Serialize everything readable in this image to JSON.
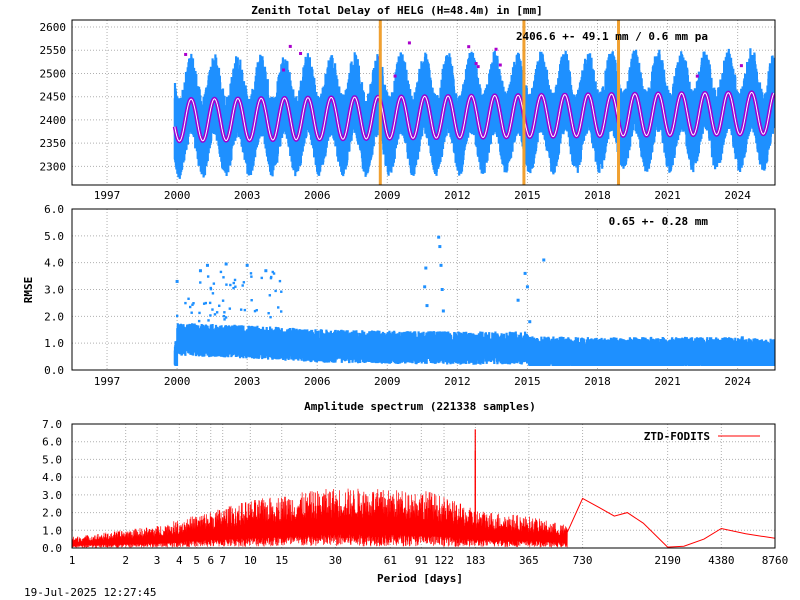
{
  "timestamp": "19-Jul-2025 12:27:45",
  "colors": {
    "ztd": "#1e90ff",
    "model": "#9b00d3",
    "model_center": "#ffffff",
    "breaks": "#f0a030",
    "spectrum": "#ff0000",
    "outliers": "#aa00cc"
  },
  "chart_data": [
    {
      "id": "ztd",
      "type": "scatter",
      "title": "Zenith Total Delay of HELG (H=48.4m) in [mm]",
      "annotation": "2406.6 +-  49.1 mm /  0.6 mm pa",
      "xlim": [
        1995.5,
        2025.6
      ],
      "ylim": [
        2260,
        2615
      ],
      "xticks": [
        1997,
        2000,
        2003,
        2006,
        2009,
        2012,
        2015,
        2018,
        2021,
        2024
      ],
      "xtick_labels": [
        "1997",
        "2000",
        "2003",
        "2006",
        "2009",
        "2012",
        "2015",
        "2018",
        "2021",
        "2024"
      ],
      "yticks": [
        2300,
        2350,
        2400,
        2450,
        2500,
        2550,
        2600
      ],
      "ytick_labels": [
        "2300",
        "2350",
        "2400",
        "2450",
        "2500",
        "2550",
        "2600"
      ],
      "data_start": 1999.9,
      "data_end": 2025.55,
      "mean": 2406.6,
      "seasonal_amplitude": 45,
      "trend_per_year": 0.6,
      "scatter_spread": 75,
      "breaks": [
        2008.7,
        2014.85,
        2018.9
      ]
    },
    {
      "id": "rmse",
      "type": "scatter",
      "ylabel": "RMSE",
      "annotation": "0.65 +-  0.28 mm",
      "xlim": [
        1995.5,
        2025.6
      ],
      "ylim": [
        0,
        6
      ],
      "xticks": [
        1997,
        2000,
        2003,
        2006,
        2009,
        2012,
        2015,
        2018,
        2021,
        2024
      ],
      "xtick_labels": [
        "1997",
        "2000",
        "2003",
        "2006",
        "2009",
        "2012",
        "2015",
        "2018",
        "2021",
        "2024"
      ],
      "yticks": [
        0,
        1,
        2,
        3,
        4,
        5,
        6
      ],
      "ytick_labels": [
        "0.0",
        "1.0",
        "2.0",
        "3.0",
        "4.0",
        "5.0",
        "6.0"
      ],
      "mean_series": [
        {
          "x": 2000,
          "y": 1.05
        },
        {
          "x": 2003,
          "y": 0.95
        },
        {
          "x": 2006,
          "y": 0.8
        },
        {
          "x": 2009,
          "y": 0.75
        },
        {
          "x": 2012,
          "y": 0.72
        },
        {
          "x": 2014.9,
          "y": 0.72
        },
        {
          "x": 2015.2,
          "y": 0.55
        },
        {
          "x": 2018,
          "y": 0.5
        },
        {
          "x": 2021,
          "y": 0.52
        },
        {
          "x": 2024,
          "y": 0.5
        },
        {
          "x": 2025.5,
          "y": 0.45
        }
      ],
      "spikes": [
        {
          "x": 2010.6,
          "y": 3.1
        },
        {
          "x": 2010.65,
          "y": 3.8
        },
        {
          "x": 2010.7,
          "y": 2.4
        },
        {
          "x": 2011.2,
          "y": 4.95
        },
        {
          "x": 2011.25,
          "y": 4.6
        },
        {
          "x": 2011.3,
          "y": 3.9
        },
        {
          "x": 2011.35,
          "y": 3.0
        },
        {
          "x": 2011.4,
          "y": 2.2
        },
        {
          "x": 2014.6,
          "y": 2.6
        },
        {
          "x": 2014.9,
          "y": 3.6
        },
        {
          "x": 2015.0,
          "y": 3.1
        },
        {
          "x": 2015.1,
          "y": 1.8
        },
        {
          "x": 2001.3,
          "y": 3.9
        },
        {
          "x": 2001.0,
          "y": 3.7
        },
        {
          "x": 2002.1,
          "y": 3.95
        },
        {
          "x": 2003.0,
          "y": 3.9
        },
        {
          "x": 2003.8,
          "y": 3.7
        },
        {
          "x": 2000.0,
          "y": 3.3
        },
        {
          "x": 2015.7,
          "y": 4.1
        },
        {
          "x": 2024.2,
          "y": 1.2
        }
      ]
    },
    {
      "id": "spectrum",
      "type": "line",
      "title": "Amplitude spectrum (221338 samples)",
      "xlabel": "Period [days]",
      "legend": "ZTD-FODITS",
      "legend_position": "top-right",
      "xscale": "log",
      "xlim": [
        1,
        8760
      ],
      "ylim": [
        0,
        7
      ],
      "xticks": [
        1,
        2,
        3,
        4,
        5,
        6,
        7,
        10,
        15,
        30,
        61,
        91,
        122,
        183,
        365,
        730,
        2190,
        4380,
        8760
      ],
      "xtick_labels": [
        "1",
        "2",
        "3",
        "4",
        "5",
        "6",
        "7",
        "10",
        "15",
        "30",
        "61",
        "91",
        "122",
        "183",
        "365",
        "730",
        "2190",
        "4380",
        "8760"
      ],
      "yticks": [
        0,
        1,
        2,
        3,
        4,
        5,
        6,
        7
      ],
      "ytick_labels": [
        "0.0",
        "1.0",
        "2.0",
        "3.0",
        "4.0",
        "5.0",
        "6.0",
        "7.0"
      ],
      "envelope": [
        {
          "x": 1,
          "y": 0.35
        },
        {
          "x": 3,
          "y": 0.7
        },
        {
          "x": 10,
          "y": 1.5
        },
        {
          "x": 30,
          "y": 1.9
        },
        {
          "x": 100,
          "y": 1.8
        },
        {
          "x": 183,
          "y": 1.2
        },
        {
          "x": 365,
          "y": 1.0
        },
        {
          "x": 730,
          "y": 0.6
        }
      ],
      "peaks": [
        {
          "x": 182.6,
          "y": 6.7
        },
        {
          "x": 182.6,
          "y": 5.5
        }
      ],
      "longperiod": [
        {
          "x": 600,
          "y": 0.9
        },
        {
          "x": 730,
          "y": 2.8
        },
        {
          "x": 900,
          "y": 2.3
        },
        {
          "x": 1100,
          "y": 1.8
        },
        {
          "x": 1300,
          "y": 2.0
        },
        {
          "x": 1600,
          "y": 1.4
        },
        {
          "x": 2190,
          "y": 0.05
        },
        {
          "x": 2700,
          "y": 0.1
        },
        {
          "x": 3500,
          "y": 0.5
        },
        {
          "x": 4380,
          "y": 1.1
        },
        {
          "x": 6000,
          "y": 0.8
        },
        {
          "x": 8760,
          "y": 0.55
        }
      ]
    }
  ]
}
